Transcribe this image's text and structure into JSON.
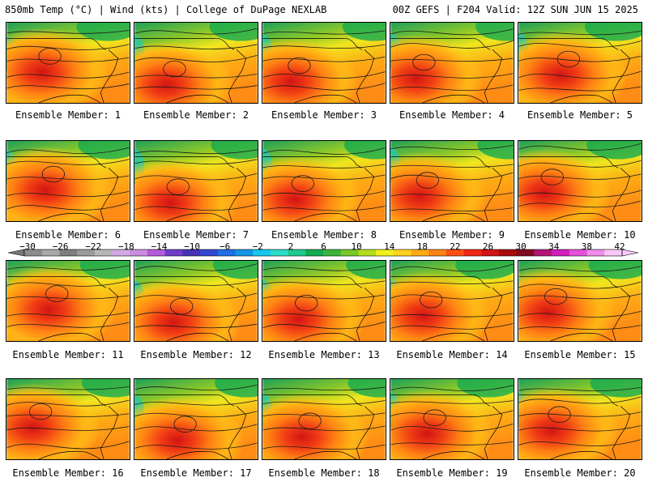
{
  "header": {
    "left": "850mb Temp (°C) | Wind (kts) | College of DuPage NEXLAB",
    "right": "00Z GEFS | F204 Valid: 12Z SUN JUN 15 2025"
  },
  "members": [
    {
      "label": "Ensemble Member: 1"
    },
    {
      "label": "Ensemble Member: 2"
    },
    {
      "label": "Ensemble Member: 3"
    },
    {
      "label": "Ensemble Member: 4"
    },
    {
      "label": "Ensemble Member: 5"
    },
    {
      "label": "Ensemble Member: 6"
    },
    {
      "label": "Ensemble Member: 7"
    },
    {
      "label": "Ensemble Member: 8"
    },
    {
      "label": "Ensemble Member: 9"
    },
    {
      "label": "Ensemble Member: 10"
    },
    {
      "label": "Ensemble Member: 11"
    },
    {
      "label": "Ensemble Member: 12"
    },
    {
      "label": "Ensemble Member: 13"
    },
    {
      "label": "Ensemble Member: 14"
    },
    {
      "label": "Ensemble Member: 15"
    },
    {
      "label": "Ensemble Member: 16"
    },
    {
      "label": "Ensemble Member: 17"
    },
    {
      "label": "Ensemble Member: 18"
    },
    {
      "label": "Ensemble Member: 19"
    },
    {
      "label": "Ensemble Member: 20"
    }
  ],
  "colorbar": {
    "ticks": [
      "−30",
      "−26",
      "−22",
      "−18",
      "−14",
      "−10",
      "−6",
      "−2",
      "2",
      "6",
      "10",
      "14",
      "18",
      "22",
      "26",
      "30",
      "34",
      "38",
      "42"
    ],
    "colors": [
      "#8c8c8c",
      "#a8a8a8",
      "#7f7f7f",
      "#9a9a9a",
      "#b6b6b6",
      "#d2a8e6",
      "#c88ce0",
      "#b45adc",
      "#6e3cc8",
      "#4632b4",
      "#3246d2",
      "#1e6ee6",
      "#1496e6",
      "#14c8f0",
      "#28dcc8",
      "#1ec88c",
      "#14aa50",
      "#3cb43c",
      "#78c828",
      "#b4dc1e",
      "#f0f01e",
      "#ffd21e",
      "#ffaa14",
      "#ff8214",
      "#ff5014",
      "#f02814",
      "#d21414",
      "#aa0a0a",
      "#820a1e",
      "#b41478",
      "#d21ebe",
      "#e650dc",
      "#f08cec",
      "#f8c8f8"
    ]
  }
}
